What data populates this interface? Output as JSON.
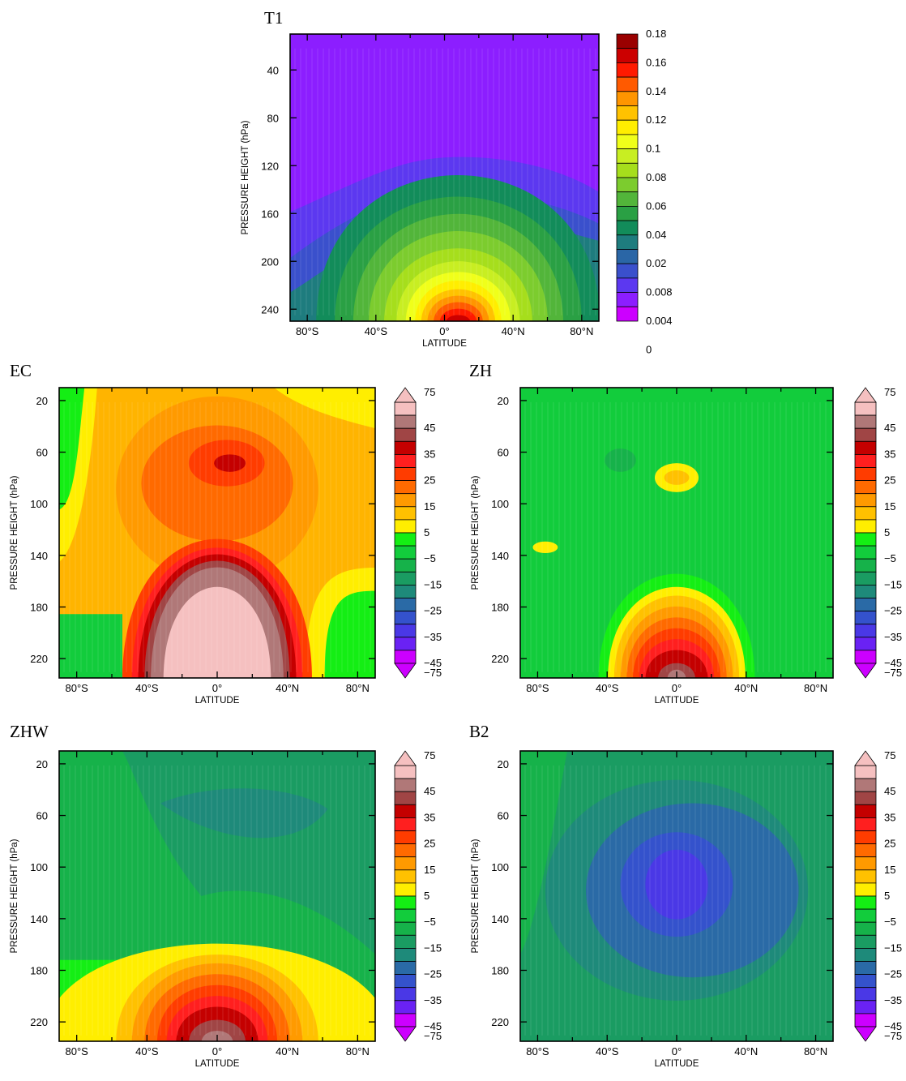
{
  "chart_data": [
    {
      "type": "heatmap",
      "title": "T1",
      "xlabel": "LATITUDE",
      "ylabel": "PRESSURE HEIGHT (hPa)",
      "xlim": [
        -90,
        90
      ],
      "ylim": [
        10,
        250
      ],
      "y_inverted": true,
      "xticks": [
        -80,
        -40,
        0,
        40,
        80
      ],
      "xtick_labels": [
        "80°S",
        "40°S",
        "0°",
        "40°N",
        "80°N"
      ],
      "yticks": [
        40,
        80,
        120,
        160,
        200,
        240
      ],
      "ytick_labels": [
        "40",
        "80",
        "120",
        "160",
        "200",
        "240"
      ],
      "colorbar": {
        "labels": [
          "0.18",
          "0.16",
          "0.14",
          "0.12",
          "0.1",
          "0.08",
          "0.06",
          "0.04",
          "0.02",
          "0.008",
          "0.004",
          "0"
        ],
        "colors": [
          "#9a0000",
          "#cc0000",
          "#ff1a00",
          "#ff5a00",
          "#ff9500",
          "#ffc200",
          "#ffee00",
          "#f0ff1a",
          "#c8ee22",
          "#a6de1c",
          "#7ccc2e",
          "#52b53a",
          "#2aa044",
          "#128c5a",
          "#1e7c7e",
          "#2a66a6",
          "#3a50cc",
          "#5c38f0",
          "#8c1eff",
          "#cc00ff"
        ]
      },
      "field": {
        "background": "#8c1eff",
        "peak_lat": 8,
        "peak_value": 0.18
      }
    },
    {
      "type": "heatmap",
      "title": "EC",
      "xlabel": "LATITUDE",
      "ylabel": "PRESSURE HEIGHT (hPa)",
      "xlim": [
        -90,
        90
      ],
      "ylim": [
        10,
        235
      ],
      "y_inverted": true,
      "xticks": [
        -80,
        -40,
        0,
        40,
        80
      ],
      "xtick_labels": [
        "80°S",
        "40°S",
        "0°",
        "40°N",
        "80°N"
      ],
      "yticks": [
        20,
        60,
        100,
        140,
        180,
        220
      ],
      "ytick_labels": [
        "20",
        "60",
        "100",
        "140",
        "180",
        "220"
      ],
      "colorbar": {
        "labels": [
          "75",
          "45",
          "35",
          "25",
          "15",
          "5",
          "−5",
          "−15",
          "−25",
          "−35",
          "−45",
          "−75"
        ],
        "colors": [
          "#f5c0c0",
          "#b07878",
          "#a04545",
          "#c40000",
          "#ff1f1f",
          "#ff3c00",
          "#ff6a00",
          "#ff9a00",
          "#ffc100",
          "#ffee00",
          "#14ee14",
          "#12cc3c",
          "#16b24a",
          "#1a9c62",
          "#1e8a7a",
          "#2a6aa6",
          "#3452cc",
          "#4a38e6",
          "#6a22f4",
          "#cc00ff"
        ],
        "extend": "both"
      },
      "field": {
        "background": "#ffb400",
        "core_value": 75
      }
    },
    {
      "type": "heatmap",
      "title": "ZH",
      "xlabel": "LATITUDE",
      "ylabel": "PRESSURE HEIGHT (hPa)",
      "xlim": [
        -90,
        90
      ],
      "ylim": [
        10,
        235
      ],
      "y_inverted": true,
      "xticks": [
        -80,
        -40,
        0,
        40,
        80
      ],
      "xtick_labels": [
        "80°S",
        "40°S",
        "0°",
        "40°N",
        "80°N"
      ],
      "yticks": [
        20,
        60,
        100,
        140,
        180,
        220
      ],
      "ytick_labels": [
        "20",
        "60",
        "100",
        "140",
        "180",
        "220"
      ],
      "colorbar": {
        "labels": [
          "75",
          "45",
          "35",
          "25",
          "15",
          "5",
          "−5",
          "−15",
          "−25",
          "−35",
          "−45",
          "−75"
        ],
        "colors": [
          "#f5c0c0",
          "#b07878",
          "#a04545",
          "#c40000",
          "#ff1f1f",
          "#ff3c00",
          "#ff6a00",
          "#ff9a00",
          "#ffc100",
          "#ffee00",
          "#14ee14",
          "#12cc3c",
          "#16b24a",
          "#1a9c62",
          "#1e8a7a",
          "#2a6aa6",
          "#3452cc",
          "#4a38e6",
          "#6a22f4",
          "#cc00ff"
        ],
        "extend": "both"
      },
      "field": {
        "background": "#12cc3c",
        "core_value": 45
      }
    },
    {
      "type": "heatmap",
      "title": "ZHW",
      "xlabel": "LATITUDE",
      "ylabel": "PRESSURE HEIGHT (hPa)",
      "xlim": [
        -90,
        90
      ],
      "ylim": [
        10,
        235
      ],
      "y_inverted": true,
      "xticks": [
        -80,
        -40,
        0,
        40,
        80
      ],
      "xtick_labels": [
        "80°S",
        "40°S",
        "0°",
        "40°N",
        "80°N"
      ],
      "yticks": [
        20,
        60,
        100,
        140,
        180,
        220
      ],
      "ytick_labels": [
        "20",
        "60",
        "100",
        "140",
        "180",
        "220"
      ],
      "colorbar": {
        "labels": [
          "75",
          "45",
          "35",
          "25",
          "15",
          "5",
          "−5",
          "−15",
          "−25",
          "−35",
          "−45",
          "−75"
        ],
        "colors": [
          "#f5c0c0",
          "#b07878",
          "#a04545",
          "#c40000",
          "#ff1f1f",
          "#ff3c00",
          "#ff6a00",
          "#ff9a00",
          "#ffc100",
          "#ffee00",
          "#14ee14",
          "#12cc3c",
          "#16b24a",
          "#1a9c62",
          "#1e8a7a",
          "#2a6aa6",
          "#3452cc",
          "#4a38e6",
          "#6a22f4",
          "#cc00ff"
        ],
        "extend": "both"
      },
      "field": {
        "background": "#16b24a",
        "core_value": 45
      }
    },
    {
      "type": "heatmap",
      "title": "B2",
      "xlabel": "LATITUDE",
      "ylabel": "PRESSURE HEIGHT (hPa)",
      "xlim": [
        -90,
        90
      ],
      "ylim": [
        10,
        235
      ],
      "y_inverted": true,
      "xticks": [
        -80,
        -40,
        0,
        40,
        80
      ],
      "xtick_labels": [
        "80°S",
        "40°S",
        "0°",
        "40°N",
        "80°N"
      ],
      "yticks": [
        20,
        60,
        100,
        140,
        180,
        220
      ],
      "ytick_labels": [
        "20",
        "60",
        "100",
        "140",
        "180",
        "220"
      ],
      "colorbar": {
        "labels": [
          "75",
          "45",
          "35",
          "25",
          "15",
          "5",
          "−5",
          "−15",
          "−25",
          "−35",
          "−45",
          "−75"
        ],
        "colors": [
          "#f5c0c0",
          "#b07878",
          "#a04545",
          "#c40000",
          "#ff1f1f",
          "#ff3c00",
          "#ff6a00",
          "#ff9a00",
          "#ffc100",
          "#ffee00",
          "#14ee14",
          "#12cc3c",
          "#16b24a",
          "#1a9c62",
          "#1e8a7a",
          "#2a6aa6",
          "#3452cc",
          "#4a38e6",
          "#6a22f4",
          "#cc00ff"
        ],
        "extend": "both"
      },
      "field": {
        "background": "#1a9c62",
        "core_value": -45
      }
    }
  ]
}
